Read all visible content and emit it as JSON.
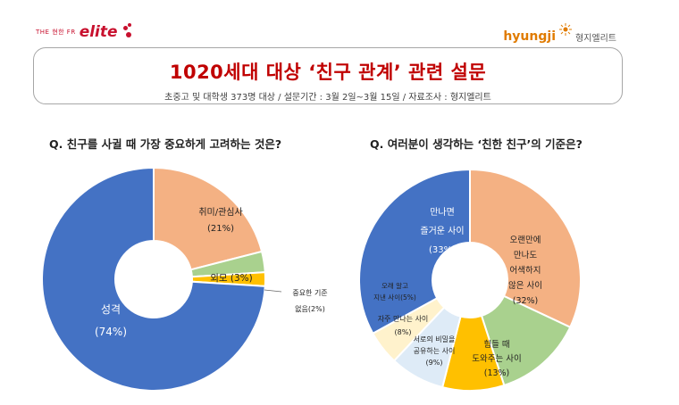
{
  "header": {
    "logo_small": "THE 현한 FR",
    "logo_brand": "elite",
    "logo_right_brand": "hyungji",
    "logo_right_korean": "형지엘리트"
  },
  "title": {
    "main": "1020세대 대상 ‘친구 관계’ 관련 설문",
    "sub": "초중고 및 대학생 373명 대상 / 설문기간 : 3월 2일~3월 15일 / 자료조사 : 형지엘리트"
  },
  "colors": {
    "blue": "#4472c4",
    "orange": "#f4b183",
    "green": "#a9d18e",
    "gold": "#ffc000",
    "light_blue": "#deebf7",
    "cream": "#fff2cc",
    "title_red": "#c00000"
  },
  "chart_data": [
    {
      "type": "pie",
      "title": "Q. 친구를 사귈 때 가장 중요하게 고려하는 것은?",
      "categories": [
        "취미/관심사",
        "외모",
        "중요한 기준 없음",
        "성격"
      ],
      "values": [
        21,
        3,
        2,
        74
      ],
      "labels": [
        [
          "취미/관심사",
          "(21%)"
        ],
        [
          "외모 (3%)"
        ],
        [
          "중요한 기준",
          "없음(2%)"
        ],
        [
          "성격",
          "(74%)"
        ]
      ],
      "colors": [
        "#f4b183",
        "#a9d18e",
        "#ffc000",
        "#4472c4"
      ],
      "unit": "%"
    },
    {
      "type": "pie",
      "title": "Q. 여러분이 생각하는 ‘친한 친구’의 기준은?",
      "categories": [
        "오랜만에 만나도 어색하지 않은 사이",
        "힘들 때 도와주는 사이",
        "서로의 비밀을 공유하는 사이",
        "자주 만나는 사이",
        "오래 알고 지낸 사이",
        "만나면 즐거운 사이"
      ],
      "values": [
        32,
        13,
        9,
        8,
        5,
        33
      ],
      "labels": [
        [
          "오랜만에",
          "만나도",
          "어색하지",
          "않은 사이",
          "(32%)"
        ],
        [
          "힘들 때",
          "도와주는 사이",
          "(13%)"
        ],
        [
          "서로의 비밀을",
          "공유하는 사이",
          "(9%)"
        ],
        [
          "자주 만나는 사이",
          "(8%)"
        ],
        [
          "오래 알고",
          "지낸 사이(5%)"
        ],
        [
          "만나면",
          "즐거운 사이",
          "(33%)"
        ]
      ],
      "colors": [
        "#f4b183",
        "#a9d18e",
        "#ffc000",
        "#deebf7",
        "#fff2cc",
        "#4472c4"
      ],
      "unit": "%"
    }
  ]
}
